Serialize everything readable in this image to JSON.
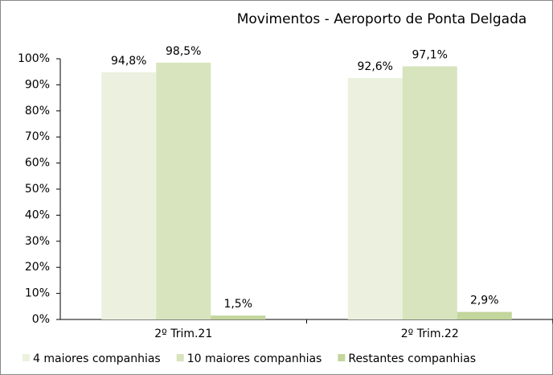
{
  "chart_data": {
    "type": "bar",
    "title": "Movimentos - Aeroporto de Ponta Delgada",
    "categories": [
      "2º Trim.21",
      "2º Trim.22"
    ],
    "series": [
      {
        "name": "4 maiores companhias",
        "color": "#ebf1de",
        "values": [
          94.8,
          92.6
        ],
        "value_labels": [
          "94,8%",
          "92,6%"
        ]
      },
      {
        "name": "10 maiores companhias",
        "color": "#d7e4bd",
        "values": [
          98.5,
          97.1
        ],
        "value_labels": [
          "98,5%",
          "97,1%"
        ]
      },
      {
        "name": "Restantes companhias",
        "color": "#c3d69b",
        "values": [
          1.5,
          2.9
        ],
        "value_labels": [
          "1,5%",
          "2,9%"
        ]
      }
    ],
    "ylim": [
      0,
      100
    ],
    "yticks": [
      {
        "value": 0,
        "label": "0%"
      },
      {
        "value": 10,
        "label": "10%"
      },
      {
        "value": 20,
        "label": "20%"
      },
      {
        "value": 30,
        "label": "30%"
      },
      {
        "value": 40,
        "label": "40%"
      },
      {
        "value": 50,
        "label": "50%"
      },
      {
        "value": 60,
        "label": "60%"
      },
      {
        "value": 70,
        "label": "70%"
      },
      {
        "value": 80,
        "label": "80%"
      },
      {
        "value": 90,
        "label": "90%"
      },
      {
        "value": 100,
        "label": "100%"
      }
    ],
    "legend": "bottom"
  }
}
